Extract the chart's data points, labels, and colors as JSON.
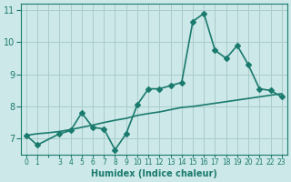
{
  "xlabel": "Humidex (Indice chaleur)",
  "ylabel": "",
  "bg_color": "#cce8e8",
  "line_color": "#1a7a6e",
  "grid_color": "#aacccc",
  "x_jagged": [
    0,
    1,
    3,
    4,
    5,
    6,
    7,
    8,
    9,
    10,
    11,
    12,
    13,
    14,
    15,
    16,
    17,
    18,
    19,
    20,
    21,
    22,
    23
  ],
  "y_jagged": [
    7.1,
    6.8,
    7.15,
    7.25,
    7.8,
    7.35,
    7.3,
    6.65,
    7.15,
    8.05,
    8.55,
    8.55,
    8.65,
    8.75,
    10.65,
    10.9,
    9.75,
    9.5,
    9.9,
    9.3,
    8.55,
    8.5,
    8.3
  ],
  "x_smooth": [
    0,
    1,
    2,
    3,
    4,
    5,
    6,
    7,
    8,
    9,
    10,
    11,
    12,
    13,
    14,
    15,
    16,
    17,
    18,
    19,
    20,
    21,
    22,
    23
  ],
  "y_smooth": [
    7.1,
    7.15,
    7.18,
    7.22,
    7.28,
    7.35,
    7.42,
    7.5,
    7.57,
    7.63,
    7.72,
    7.78,
    7.83,
    7.9,
    7.97,
    8.0,
    8.05,
    8.1,
    8.15,
    8.2,
    8.25,
    8.3,
    8.35,
    8.4
  ],
  "ylim": [
    6.5,
    11.2
  ],
  "xlim": [
    -0.5,
    23.5
  ],
  "yticks": [
    7,
    8,
    9,
    10,
    11
  ],
  "marker": "D",
  "marker_size": 3,
  "line_width": 1.2
}
